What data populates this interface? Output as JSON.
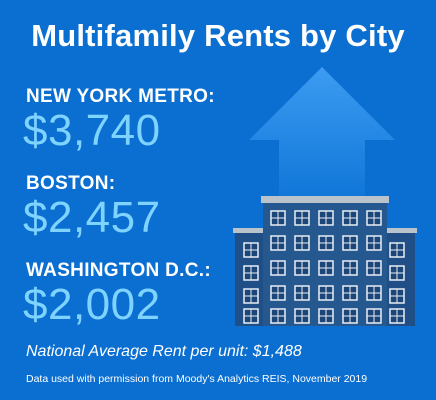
{
  "title": "Multifamily Rents by City",
  "cities": [
    {
      "name": "NEW YORK METRO:",
      "rent": "$3,740"
    },
    {
      "name": "BOSTON:",
      "rent": "$2,457"
    },
    {
      "name": "WASHINGTON D.C.:",
      "rent": "$2,002"
    }
  ],
  "national_average": "National Average Rent per unit: $1,488",
  "credit": "Data used with permission from Moody's Analytics REIS, November 2019",
  "illustration": {
    "icons": [
      "up-arrow-icon",
      "apartment-building-icon"
    ]
  },
  "colors": {
    "background": "#0a6fd1",
    "rent_value": "#7fd3ff",
    "building": "#1f4f86",
    "arrow": "#3a9af0"
  }
}
